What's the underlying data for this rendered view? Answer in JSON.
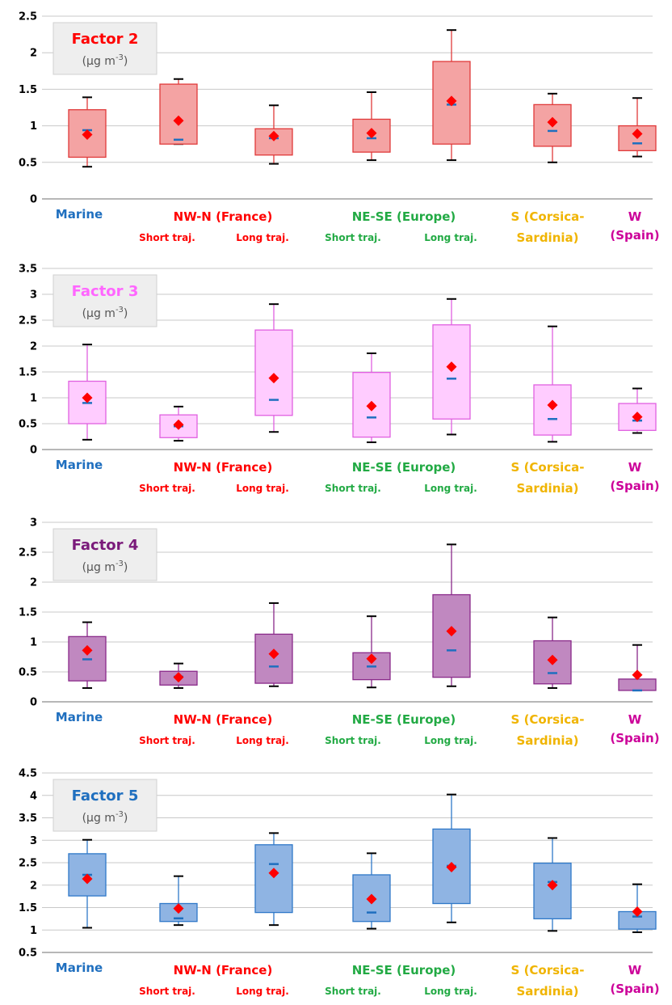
{
  "colors": {
    "marine": "#1f6fbf",
    "france": "#ff0000",
    "europe": "#22aa44",
    "corsica": "#f0b400",
    "spain": "#cc0099",
    "mean_marker": "#ff0000",
    "median_tick": "#1f6fbf"
  },
  "category_labels": {
    "marine": "Marine",
    "france": "NW-N (France)",
    "europe": "NE-SE (Europe)",
    "corsica_line1": "S  (Corsica-",
    "corsica_line2": "Sardinia)",
    "spain_line1": "W",
    "spain_line2": "(Spain)",
    "short_traj": "Short traj.",
    "long_traj": "Long traj."
  },
  "chart_data": [
    {
      "type": "box",
      "title": "Factor 2",
      "unit_prefix": "(µg m",
      "unit_exp": "-3",
      "unit_suffix": ")",
      "title_color": "#ff0000",
      "box_fill": "#f4a3a3",
      "box_stroke": "#e03a3a",
      "ylim": [
        0,
        2.5
      ],
      "yticks": [
        "0",
        "0.5",
        "1",
        "1.5",
        "2",
        "2.5"
      ],
      "ytick_values": [
        0,
        0.5,
        1,
        1.5,
        2,
        2.5
      ],
      "categories": [
        "Marine",
        "NW-N (France) Short traj.",
        "NW-N (France) Long traj.",
        "NE-SE (Europe) Short traj.",
        "NE-SE (Europe) Long traj.",
        "S (Corsica-Sardinia)",
        "W (Spain)"
      ],
      "boxes": [
        {
          "whisker_low": 0.44,
          "q1": 0.57,
          "median": 0.94,
          "q3": 1.22,
          "whisker_high": 1.39,
          "mean": 0.88
        },
        {
          "whisker_low": 0.75,
          "q1": 0.75,
          "median": 0.81,
          "q3": 1.57,
          "whisker_high": 1.64,
          "mean": 1.07
        },
        {
          "whisker_low": 0.48,
          "q1": 0.6,
          "median": 0.83,
          "q3": 0.96,
          "whisker_high": 1.28,
          "mean": 0.86
        },
        {
          "whisker_low": 0.53,
          "q1": 0.64,
          "median": 0.83,
          "q3": 1.09,
          "whisker_high": 1.46,
          "mean": 0.9
        },
        {
          "whisker_low": 0.53,
          "q1": 0.75,
          "median": 1.29,
          "q3": 1.88,
          "whisker_high": 2.31,
          "mean": 1.34
        },
        {
          "whisker_low": 0.5,
          "q1": 0.72,
          "median": 0.93,
          "q3": 1.29,
          "whisker_high": 1.44,
          "mean": 1.05
        },
        {
          "whisker_low": 0.58,
          "q1": 0.66,
          "median": 0.76,
          "q3": 1.0,
          "whisker_high": 1.38,
          "mean": 0.89
        }
      ]
    },
    {
      "type": "box",
      "title": "Factor 3",
      "unit_prefix": "(µg m",
      "unit_exp": "-3",
      "unit_suffix": ")",
      "title_color": "#ff66ff",
      "box_fill": "#ffccff",
      "box_stroke": "#e060e0",
      "ylim": [
        0,
        3.5
      ],
      "yticks": [
        "0",
        "0.5",
        "1",
        "1.5",
        "2",
        "2.5",
        "3",
        "3.5"
      ],
      "ytick_values": [
        0,
        0.5,
        1,
        1.5,
        2,
        2.5,
        3,
        3.5
      ],
      "categories": [
        "Marine",
        "NW-N (France) Short traj.",
        "NW-N (France) Long traj.",
        "NE-SE (Europe) Short traj.",
        "NE-SE (Europe) Long traj.",
        "S (Corsica-Sardinia)",
        "W (Spain)"
      ],
      "boxes": [
        {
          "whisker_low": 0.19,
          "q1": 0.5,
          "median": 0.9,
          "q3": 1.32,
          "whisker_high": 2.03,
          "mean": 1.0
        },
        {
          "whisker_low": 0.17,
          "q1": 0.23,
          "median": 0.45,
          "q3": 0.67,
          "whisker_high": 0.83,
          "mean": 0.48
        },
        {
          "whisker_low": 0.34,
          "q1": 0.66,
          "median": 0.96,
          "q3": 2.31,
          "whisker_high": 2.81,
          "mean": 1.38
        },
        {
          "whisker_low": 0.14,
          "q1": 0.24,
          "median": 0.62,
          "q3": 1.49,
          "whisker_high": 1.86,
          "mean": 0.84
        },
        {
          "whisker_low": 0.29,
          "q1": 0.59,
          "median": 1.37,
          "q3": 2.41,
          "whisker_high": 2.91,
          "mean": 1.6
        },
        {
          "whisker_low": 0.15,
          "q1": 0.28,
          "median": 0.59,
          "q3": 1.25,
          "whisker_high": 2.38,
          "mean": 0.86
        },
        {
          "whisker_low": 0.32,
          "q1": 0.37,
          "median": 0.56,
          "q3": 0.89,
          "whisker_high": 1.18,
          "mean": 0.63
        }
      ]
    },
    {
      "type": "box",
      "title": "Factor 4",
      "unit_prefix": "(µg m",
      "unit_exp": "-3",
      "unit_suffix": ")",
      "title_color": "#7a1a7a",
      "box_fill": "#c088c0",
      "box_stroke": "#8a2a8a",
      "ylim": [
        0,
        3
      ],
      "yticks": [
        "0",
        "0.5",
        "1",
        "1.5",
        "2",
        "2.5",
        "3"
      ],
      "ytick_values": [
        0,
        0.5,
        1,
        1.5,
        2,
        2.5,
        3
      ],
      "categories": [
        "Marine",
        "NW-N (France) Short traj.",
        "NW-N (France) Long traj.",
        "NE-SE (Europe) Short traj.",
        "NE-SE (Europe) Long traj.",
        "S (Corsica-Sardinia)",
        "W (Spain)"
      ],
      "boxes": [
        {
          "whisker_low": 0.23,
          "q1": 0.35,
          "median": 0.71,
          "q3": 1.09,
          "whisker_high": 1.33,
          "mean": 0.86
        },
        {
          "whisker_low": 0.23,
          "q1": 0.28,
          "median": 0.42,
          "q3": 0.51,
          "whisker_high": 0.64,
          "mean": 0.41
        },
        {
          "whisker_low": 0.26,
          "q1": 0.31,
          "median": 0.59,
          "q3": 1.13,
          "whisker_high": 1.65,
          "mean": 0.8
        },
        {
          "whisker_low": 0.24,
          "q1": 0.37,
          "median": 0.59,
          "q3": 0.82,
          "whisker_high": 1.43,
          "mean": 0.72
        },
        {
          "whisker_low": 0.26,
          "q1": 0.41,
          "median": 0.86,
          "q3": 1.79,
          "whisker_high": 2.63,
          "mean": 1.18
        },
        {
          "whisker_low": 0.23,
          "q1": 0.3,
          "median": 0.48,
          "q3": 1.02,
          "whisker_high": 1.41,
          "mean": 0.7
        },
        {
          "whisker_low": 0.19,
          "q1": 0.19,
          "median": 0.19,
          "q3": 0.38,
          "whisker_high": 0.95,
          "mean": 0.45
        }
      ]
    },
    {
      "type": "box",
      "title": "Factor 5",
      "unit_prefix": "(µg m",
      "unit_exp": "-3",
      "unit_suffix": ")",
      "title_color": "#1f6fbf",
      "box_fill": "#8fb4e3",
      "box_stroke": "#2f78c8",
      "ylim": [
        0.5,
        4.5
      ],
      "yticks": [
        "0.5",
        "1",
        "1.5",
        "2",
        "2.5",
        "3",
        "3.5",
        "4",
        "4.5"
      ],
      "ytick_values": [
        0.5,
        1,
        1.5,
        2,
        2.5,
        3,
        3.5,
        4,
        4.5
      ],
      "categories": [
        "Marine",
        "NW-N (France) Short traj.",
        "NW-N (France) Long traj.",
        "NE-SE (Europe) Short traj.",
        "NE-SE (Europe) Long traj.",
        "S (Corsica-Sardinia)",
        "W (Spain)"
      ],
      "boxes": [
        {
          "whisker_low": 1.05,
          "q1": 1.76,
          "median": 2.23,
          "q3": 2.7,
          "whisker_high": 3.01,
          "mean": 2.14
        },
        {
          "whisker_low": 1.11,
          "q1": 1.19,
          "median": 1.26,
          "q3": 1.59,
          "whisker_high": 2.2,
          "mean": 1.48
        },
        {
          "whisker_low": 1.11,
          "q1": 1.39,
          "median": 2.47,
          "q3": 2.9,
          "whisker_high": 3.16,
          "mean": 2.27
        },
        {
          "whisker_low": 1.03,
          "q1": 1.19,
          "median": 1.39,
          "q3": 2.23,
          "whisker_high": 2.71,
          "mean": 1.69
        },
        {
          "whisker_low": 1.17,
          "q1": 1.59,
          "median": 2.43,
          "q3": 3.25,
          "whisker_high": 4.02,
          "mean": 2.4
        },
        {
          "whisker_low": 0.98,
          "q1": 1.25,
          "median": 2.07,
          "q3": 2.49,
          "whisker_high": 3.05,
          "mean": 2.0
        },
        {
          "whisker_low": 0.95,
          "q1": 1.02,
          "median": 1.3,
          "q3": 1.41,
          "whisker_high": 2.02,
          "mean": 1.41
        }
      ]
    }
  ]
}
